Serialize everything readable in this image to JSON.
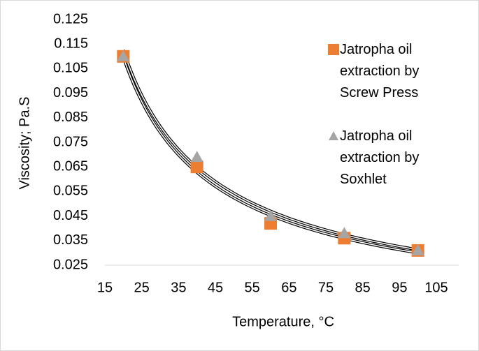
{
  "chart_data": {
    "type": "scatter",
    "x_label": "Temperature, °C",
    "y_label": "Viscosity; Pa.S",
    "x": [
      20,
      40,
      60,
      80,
      100
    ],
    "series": [
      {
        "name": "Jatropha oil extraction by Screw Press",
        "color": "#ed7d31",
        "marker": "square",
        "values": [
          0.11,
          0.065,
          0.042,
          0.036,
          0.031
        ]
      },
      {
        "name": "Jatropha oil extraction by Soxhlet",
        "color": "#a5a5a5",
        "marker": "triangle",
        "values": [
          0.11,
          0.069,
          0.045,
          0.038,
          0.031
        ]
      }
    ],
    "trendline": "power",
    "xlim": [
      15,
      105
    ],
    "xticks": [
      15,
      25,
      35,
      45,
      55,
      65,
      75,
      85,
      95,
      105
    ],
    "ylim": [
      0.025,
      0.125
    ],
    "yticks": [
      0.025,
      0.035,
      0.045,
      0.055,
      0.065,
      0.075,
      0.085,
      0.095,
      0.105,
      0.115,
      0.125
    ],
    "grid": false,
    "legend": "top-right"
  }
}
